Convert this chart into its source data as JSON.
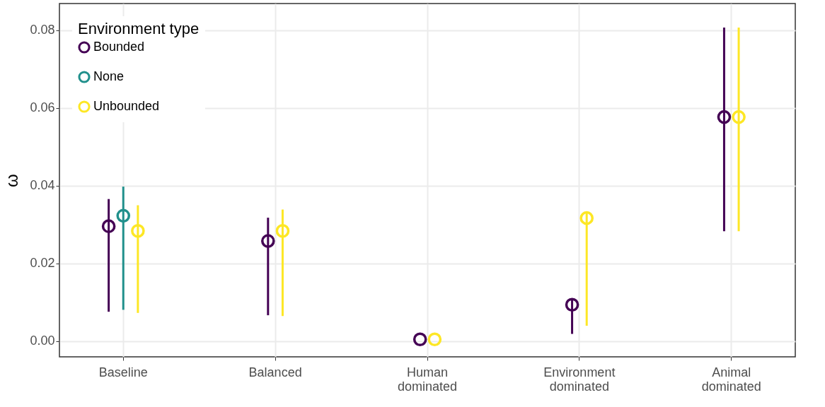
{
  "chart_data": {
    "type": "scatter",
    "ylabel": "ω",
    "legend_title": "Environment type",
    "categories": [
      "Baseline",
      "Balanced",
      "Human dominated",
      "Environment dominated",
      "Animal dominated"
    ],
    "series": [
      {
        "name": "Bounded",
        "color": "#440154",
        "values": [
          0.0296,
          0.0258,
          0.0005,
          0.0094,
          0.0577
        ],
        "errors": [
          [
            0.0076,
            0.0366
          ],
          [
            0.0067,
            0.0318
          ],
          null,
          [
            0.0019,
            0.0106
          ],
          [
            0.0283,
            0.0807
          ]
        ]
      },
      {
        "name": "None",
        "color": "#21908c",
        "values": [
          0.0323,
          null,
          null,
          null,
          null
        ],
        "errors": [
          [
            0.0081,
            0.0398
          ],
          null,
          null,
          null,
          null
        ]
      },
      {
        "name": "Unbounded",
        "color": "#fde725",
        "values": [
          0.0284,
          0.0284,
          0.0005,
          0.0317,
          0.0577
        ],
        "errors": [
          [
            0.0073,
            0.035
          ],
          [
            0.0065,
            0.0339
          ],
          null,
          [
            0.004,
            0.0332
          ],
          [
            0.0283,
            0.0807
          ]
        ]
      }
    ],
    "ylim": [
      -0.004,
      0.0869
    ],
    "yticks": [
      {
        "value": 0,
        "label": "0.00"
      },
      {
        "value": 0.02,
        "label": "0.02"
      },
      {
        "value": 0.04,
        "label": "0.04"
      },
      {
        "value": 0.06,
        "label": "0.06"
      },
      {
        "value": 0.08,
        "label": "0.08"
      }
    ],
    "grid": true,
    "legend": "top left",
    "marker": "circle"
  }
}
